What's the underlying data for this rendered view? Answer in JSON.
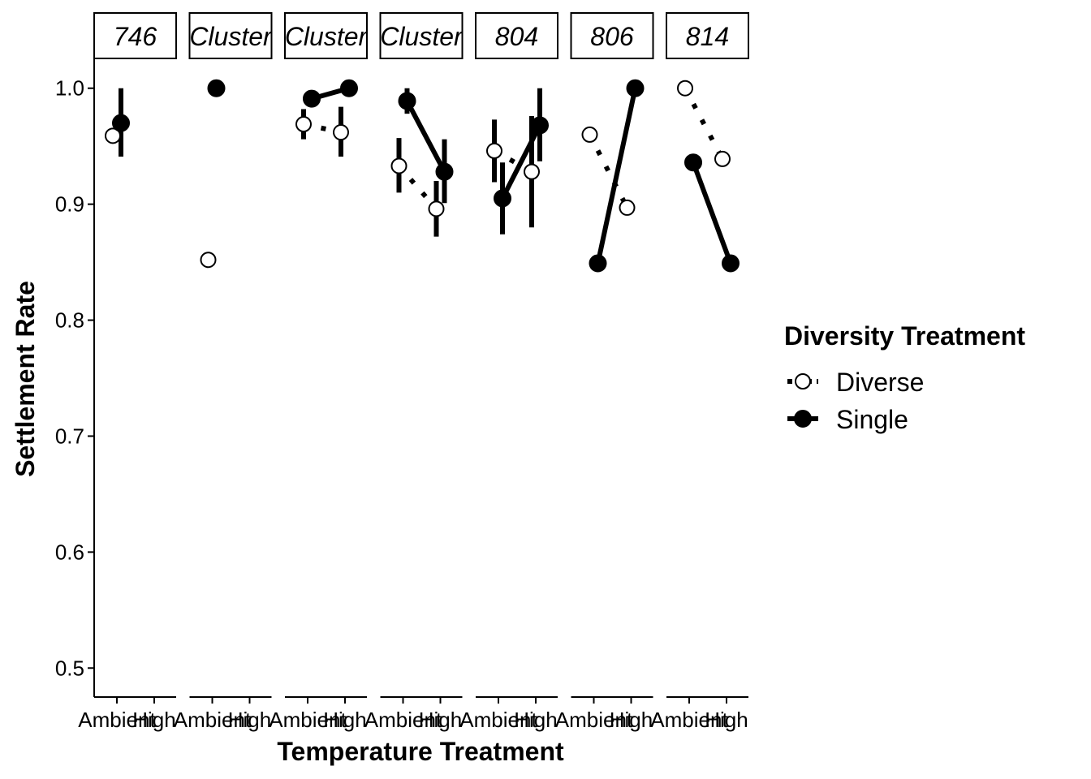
{
  "chart_data": {
    "type": "line",
    "xlabel": "Temperature Treatment",
    "ylabel": "Settlement Rate",
    "ylim": [
      0.475,
      1.025
    ],
    "y_ticks": [
      0.5,
      0.6,
      0.7,
      0.8,
      0.9,
      1.0
    ],
    "y_tick_labels": [
      "0.5",
      "0.6",
      "0.7",
      "0.8",
      "0.9",
      "1.0"
    ],
    "categories": [
      "Ambient",
      "High"
    ],
    "grid": false,
    "legend": {
      "title": "Diversity Treatment",
      "position": "right",
      "entries": [
        {
          "label": "Diverse",
          "marker": "open-circle",
          "line": "dotted"
        },
        {
          "label": "Single",
          "marker": "filled-circle",
          "line": "solid"
        }
      ]
    },
    "facets": [
      {
        "label": "746",
        "series": [
          {
            "name": "Diverse",
            "values": [
              0.959,
              null
            ],
            "errors": [
              null,
              null
            ]
          },
          {
            "name": "Single",
            "values": [
              0.97,
              null
            ],
            "errors": [
              [
                0.941,
                1.0
              ],
              null
            ]
          }
        ]
      },
      {
        "label": "Cluster",
        "series": [
          {
            "name": "Diverse",
            "values": [
              0.852,
              null
            ],
            "errors": [
              null,
              null
            ]
          },
          {
            "name": "Single",
            "values": [
              1.0,
              null
            ],
            "errors": [
              null,
              null
            ]
          }
        ]
      },
      {
        "label": "Cluster",
        "series": [
          {
            "name": "Diverse",
            "values": [
              0.969,
              0.962
            ],
            "errors": [
              [
                0.956,
                0.982
              ],
              [
                0.941,
                0.984
              ]
            ]
          },
          {
            "name": "Single",
            "values": [
              0.991,
              1.0
            ],
            "errors": [
              null,
              null
            ]
          }
        ]
      },
      {
        "label": "Cluster",
        "series": [
          {
            "name": "Diverse",
            "values": [
              0.933,
              0.896
            ],
            "errors": [
              [
                0.91,
                0.957
              ],
              [
                0.872,
                0.92
              ]
            ]
          },
          {
            "name": "Single",
            "values": [
              0.989,
              0.928
            ],
            "errors": [
              [
                0.978,
                1.0
              ],
              [
                0.901,
                0.956
              ]
            ]
          }
        ]
      },
      {
        "label": "804",
        "series": [
          {
            "name": "Diverse",
            "values": [
              0.946,
              0.928
            ],
            "errors": [
              [
                0.919,
                0.973
              ],
              [
                0.88,
                0.976
              ]
            ]
          },
          {
            "name": "Single",
            "values": [
              0.905,
              0.968
            ],
            "errors": [
              [
                0.874,
                0.936
              ],
              [
                0.937,
                1.0
              ]
            ]
          }
        ]
      },
      {
        "label": "806",
        "series": [
          {
            "name": "Diverse",
            "values": [
              0.96,
              0.897
            ],
            "errors": [
              null,
              null
            ]
          },
          {
            "name": "Single",
            "values": [
              0.849,
              1.0
            ],
            "errors": [
              null,
              null
            ]
          }
        ]
      },
      {
        "label": "814",
        "series": [
          {
            "name": "Diverse",
            "values": [
              1.0,
              0.939
            ],
            "errors": [
              null,
              null
            ]
          },
          {
            "name": "Single",
            "values": [
              0.936,
              0.849
            ],
            "errors": [
              null,
              null
            ]
          }
        ]
      }
    ]
  }
}
